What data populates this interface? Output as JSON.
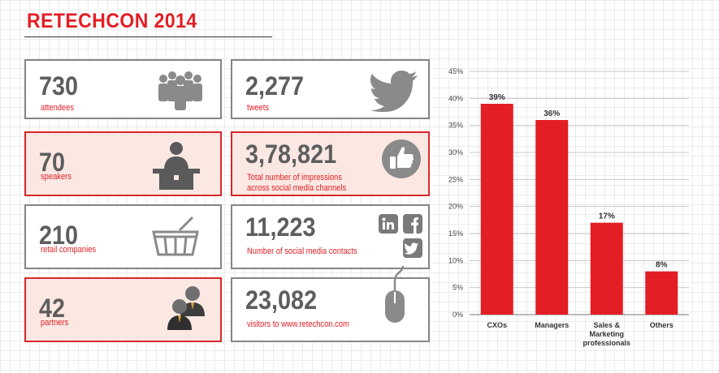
{
  "header": {
    "title": "RETECHCON 2014"
  },
  "stats": {
    "attendees": {
      "value": "730",
      "label": "attendees"
    },
    "tweets": {
      "value": "2,277",
      "label": "tweets"
    },
    "speakers": {
      "value": "70",
      "label": "speakers"
    },
    "impressions": {
      "value": "3,78,821",
      "label_line1": "Total number of impressions",
      "label_line2": "across social media channels"
    },
    "retail": {
      "value": "210",
      "label": "retail companies"
    },
    "contacts": {
      "value": "11,223",
      "label": "Number of social media contacts"
    },
    "partners": {
      "value": "42",
      "label": "partners"
    },
    "visitors": {
      "value": "23,082",
      "label": "visitors to www.retechcon.com"
    }
  },
  "icons": {
    "attendees": "people-group-icon",
    "tweets": "twitter-bird-icon",
    "speakers": "speaker-podium-icon",
    "impressions": "thumbs-up-icon",
    "retail": "shopping-basket-icon",
    "contacts": "social-media-icons",
    "partners": "partners-icon",
    "visitors": "computer-mouse-icon"
  },
  "colors": {
    "accent": "#e31e24",
    "text_grey": "#5e5e5e",
    "highlight_bg": "#fbe8e3",
    "border_grey": "#858585"
  },
  "chart_data": {
    "type": "bar",
    "categories": [
      "CXOs",
      "Managers",
      "Sales & Marketing professionals",
      "Others"
    ],
    "category_lines": [
      [
        "CXOs"
      ],
      [
        "Managers"
      ],
      [
        "Sales &",
        "Marketing",
        "professionals"
      ],
      [
        "Others"
      ]
    ],
    "values": [
      39,
      36,
      17,
      8
    ],
    "data_labels": [
      "39%",
      "36%",
      "17%",
      "8%"
    ],
    "yticks": [
      "0%",
      "5%",
      "10%",
      "15%",
      "20%",
      "25%",
      "30%",
      "35%",
      "40%",
      "45%"
    ],
    "ylim": [
      0,
      45
    ],
    "grid": true,
    "bar_color": "#e31e24"
  }
}
